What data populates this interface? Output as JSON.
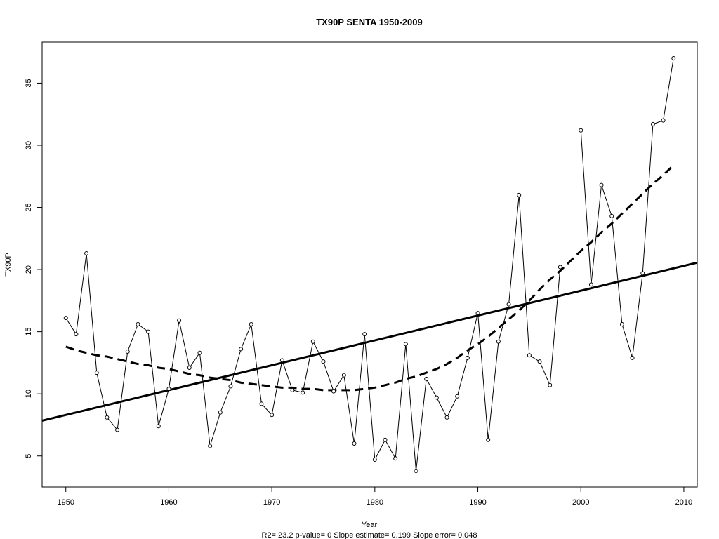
{
  "chart_data": {
    "type": "line",
    "title": "TX90P    SENTA 1950-2009",
    "xlabel": "Year",
    "ylabel": "TX90P",
    "stats_text": "R2= 23.2  p-value= 0  Slope estimate= 0.199  Slope error= 0.048",
    "xlim": [
      1947.7,
      2011.3
    ],
    "ylim": [
      2.5,
      38.3
    ],
    "x_ticks": [
      1950,
      1960,
      1970,
      1980,
      1990,
      2000,
      2010
    ],
    "y_ticks": [
      5,
      10,
      15,
      20,
      25,
      30,
      35
    ],
    "grid": false,
    "legend": "none",
    "x": [
      1950,
      1951,
      1952,
      1953,
      1954,
      1955,
      1956,
      1957,
      1958,
      1959,
      1960,
      1961,
      1962,
      1963,
      1964,
      1965,
      1966,
      1967,
      1968,
      1969,
      1970,
      1971,
      1972,
      1973,
      1974,
      1975,
      1976,
      1977,
      1978,
      1979,
      1980,
      1981,
      1982,
      1983,
      1984,
      1985,
      1986,
      1987,
      1988,
      1989,
      1990,
      1991,
      1992,
      1993,
      1994,
      1995,
      1996,
      1997,
      1998,
      1999,
      2000,
      2001,
      2002,
      2003,
      2004,
      2005,
      2006,
      2007,
      2008,
      2009
    ],
    "series": [
      {
        "values": [
          16.1,
          14.8,
          21.3,
          11.7,
          8.1,
          7.1,
          13.4,
          15.6,
          15.0,
          7.4,
          10.4,
          15.9,
          12.1,
          13.3,
          5.8,
          8.5,
          10.6,
          13.6,
          15.6,
          9.2,
          8.3,
          12.7,
          10.3,
          10.1,
          14.2,
          12.6,
          10.2,
          11.5,
          6.0,
          14.8,
          4.7,
          6.3,
          4.8,
          14.0,
          3.8,
          11.2,
          9.7,
          8.1,
          9.8,
          12.9,
          16.5,
          6.3,
          14.2,
          17.2,
          26.0,
          13.1,
          12.6,
          10.7,
          20.2,
          null,
          31.2,
          18.8,
          26.8,
          24.3,
          15.6,
          12.9,
          19.7,
          31.7,
          32.0,
          37.0
        ],
        "style": "thin-line-with-circle-markers",
        "color": "#000000"
      },
      {
        "values": [
          13.8,
          13.5,
          13.3,
          13.1,
          13.0,
          12.8,
          12.6,
          12.4,
          12.3,
          12.1,
          12.0,
          11.8,
          11.6,
          11.5,
          11.3,
          11.2,
          11.1,
          10.9,
          10.8,
          10.7,
          10.6,
          10.5,
          10.5,
          10.4,
          10.4,
          10.3,
          10.3,
          10.3,
          10.3,
          10.4,
          10.5,
          10.7,
          10.9,
          11.2,
          11.4,
          11.7,
          12.0,
          12.4,
          12.9,
          13.5,
          14.0,
          14.6,
          15.3,
          16.0,
          16.7,
          17.5,
          18.4,
          19.2,
          19.9,
          20.7,
          21.5,
          22.2,
          23.0,
          23.7,
          24.5,
          25.3,
          26.1,
          26.9,
          27.6,
          28.4
        ],
        "style": "thick-dashed",
        "color": "#000000"
      },
      {
        "values": [
          8.3,
          8.5,
          8.7,
          8.9,
          9.1,
          9.3,
          9.5,
          9.7,
          9.9,
          10.1,
          10.3,
          10.5,
          10.7,
          10.9,
          11.1,
          11.3,
          11.5,
          11.7,
          11.9,
          12.1,
          12.3,
          12.5,
          12.7,
          12.9,
          13.1,
          13.3,
          13.5,
          13.7,
          13.9,
          14.1,
          14.3,
          14.5,
          14.7,
          14.9,
          15.1,
          15.3,
          15.5,
          15.7,
          15.9,
          16.1,
          16.3,
          16.5,
          16.7,
          16.9,
          17.1,
          17.3,
          17.5,
          17.7,
          17.9,
          18.1,
          18.3,
          18.5,
          18.7,
          18.9,
          19.1,
          19.3,
          19.5,
          19.7,
          19.9,
          20.1
        ],
        "style": "thick-solid-linear-trend",
        "color": "#000000"
      }
    ]
  }
}
